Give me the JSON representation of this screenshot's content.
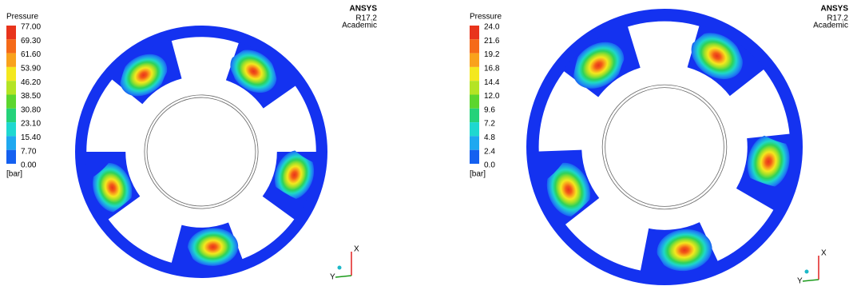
{
  "panels": [
    {
      "legend": {
        "title": "Pressure",
        "labels": [
          "77.00",
          "69.30",
          "61.60",
          "53.90",
          "46.20",
          "38.50",
          "30.80",
          "23.10",
          "15.40",
          "7.70",
          "0.00"
        ],
        "unit": "[bar]"
      },
      "logo": {
        "brand": "ANSYS",
        "version": "R17.2",
        "edition": "Academic"
      },
      "axes": {
        "x": "X",
        "y": "Y"
      }
    },
    {
      "legend": {
        "title": "Pressure",
        "labels": [
          "24.0",
          "21.6",
          "19.2",
          "16.8",
          "14.4",
          "12.0",
          "9.6",
          "7.2",
          "4.8",
          "2.4",
          "0.0"
        ],
        "unit": "[bar]"
      },
      "logo": {
        "brand": "ANSYS",
        "version": "R17.2",
        "edition": "Academic"
      },
      "axes": {
        "x": "X",
        "y": "Y"
      }
    }
  ]
}
